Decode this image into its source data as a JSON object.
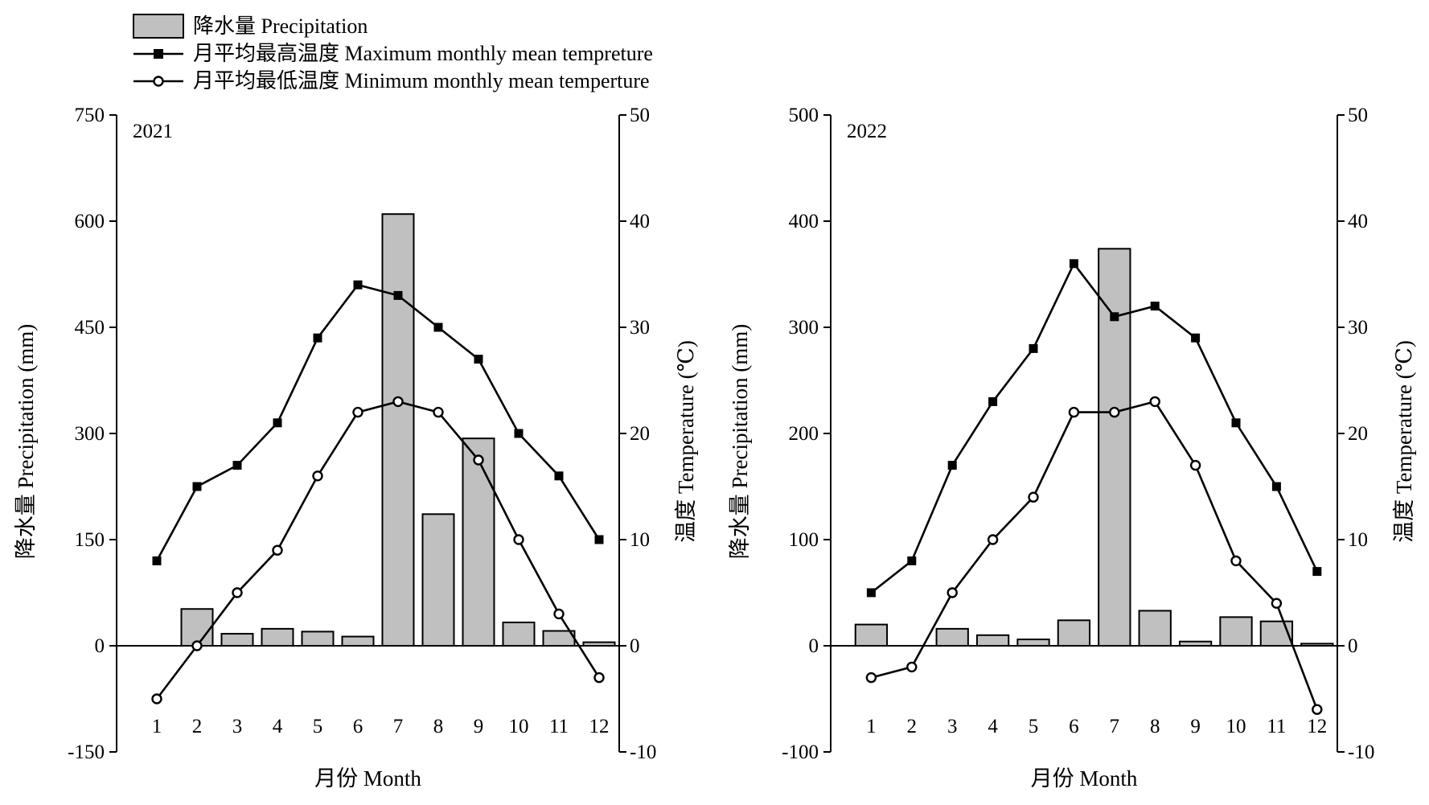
{
  "legend": {
    "precip": "降水量 Precipitation",
    "tmax": "月平均最高温度 Maximum monthly mean tempreture",
    "tmin": "月平均最低温度 Minimum monthly mean temperture"
  },
  "colors": {
    "bar_fill": "#c0c0c0",
    "line": "#000000"
  },
  "chart_data": [
    {
      "type": "bar",
      "panel_label": "2021",
      "xlabel": "月份 Month",
      "ylabel": "降水量 Precipitation (mm)",
      "y2label": "温度 Temperature (℃)",
      "categories": [
        "1",
        "2",
        "3",
        "4",
        "5",
        "6",
        "7",
        "8",
        "9",
        "10",
        "11",
        "12"
      ],
      "ylim": [
        -150,
        750
      ],
      "yticks": [
        "-150",
        "0",
        "150",
        "300",
        "450",
        "600",
        "750"
      ],
      "y2lim": [
        -10,
        50
      ],
      "y2ticks": [
        "-10",
        "0",
        "10",
        "20",
        "30",
        "40",
        "50"
      ],
      "series": [
        {
          "name": "降水量 Precipitation",
          "axis": "left",
          "kind": "bar",
          "values": [
            0,
            52,
            17,
            24,
            20,
            13,
            610,
            186,
            293,
            33,
            21,
            5
          ]
        },
        {
          "name": "月平均最高温度 Maximum monthly mean tempreture",
          "axis": "right",
          "kind": "line",
          "marker": "filled-square",
          "values": [
            8,
            15,
            17,
            21,
            29,
            34,
            33,
            30,
            27,
            20,
            16,
            10
          ]
        },
        {
          "name": "月平均最低温度 Minimum monthly mean temperture",
          "axis": "right",
          "kind": "line",
          "marker": "open-circle",
          "values": [
            -5,
            0,
            5,
            9,
            16,
            22,
            23,
            22,
            17.5,
            10,
            3,
            -3
          ]
        }
      ]
    },
    {
      "type": "bar",
      "panel_label": "2022",
      "xlabel": "月份 Month",
      "ylabel": "降水量 Precipitation (mm)",
      "y2label": "温度 Temperature (℃)",
      "categories": [
        "1",
        "2",
        "3",
        "4",
        "5",
        "6",
        "7",
        "8",
        "9",
        "10",
        "11",
        "12"
      ],
      "ylim": [
        -100,
        500
      ],
      "yticks": [
        "-100",
        "0",
        "100",
        "200",
        "300",
        "400",
        "500"
      ],
      "y2lim": [
        -10,
        50
      ],
      "y2ticks": [
        "-10",
        "0",
        "10",
        "20",
        "30",
        "40",
        "50"
      ],
      "series": [
        {
          "name": "降水量 Precipitation",
          "axis": "left",
          "kind": "bar",
          "values": [
            20,
            0,
            16,
            10,
            6,
            24,
            374,
            33,
            4,
            27,
            23,
            2
          ]
        },
        {
          "name": "月平均最高温度 Maximum monthly mean tempreture",
          "axis": "right",
          "kind": "line",
          "marker": "filled-square",
          "values": [
            5,
            8,
            17,
            23,
            28,
            36,
            31,
            32,
            29,
            21,
            15,
            7
          ]
        },
        {
          "name": "月平均最低温度 Minimum monthly mean temperture",
          "axis": "right",
          "kind": "line",
          "marker": "open-circle",
          "values": [
            -3,
            -2,
            5,
            10,
            14,
            22,
            22,
            23,
            17,
            8,
            4,
            -6
          ]
        }
      ]
    }
  ]
}
